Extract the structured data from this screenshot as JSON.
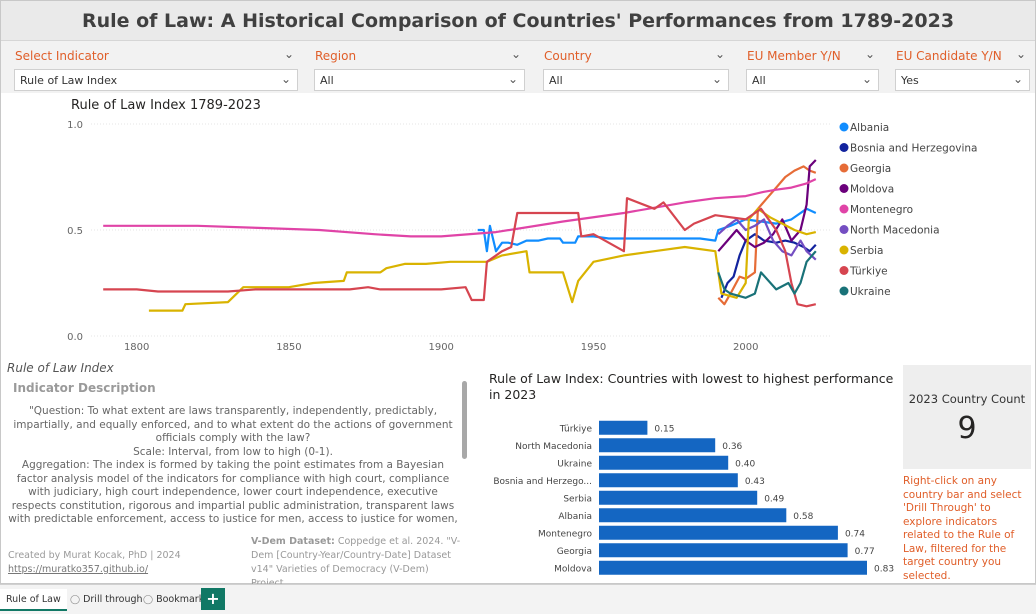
{
  "title": "Rule of Law: A Historical Comparison of Countries' Performances from 1789-2023",
  "filters": [
    {
      "label": "Select Indicator",
      "value": "Rule of Law Index"
    },
    {
      "label": "Region",
      "value": "All"
    },
    {
      "label": "Country",
      "value": "All"
    },
    {
      "label": "EU Member Y/N",
      "value": "All"
    },
    {
      "label": "EU Candidate Y/N",
      "value": "Yes"
    }
  ],
  "icons": {
    "chevron": "chevron-down-icon"
  },
  "indicator": {
    "heading": "Rule of Law Index",
    "subheading": "Indicator Description",
    "description": "\"Question: To what extent are laws transparently, independently, predictably, impartially, and equally enforced, and to what extent do the actions of government officials comply with the law?\nScale: Interval, from low to high (0-1).\nAggregation: The index is formed by taking the point estimates from a Bayesian factor analysis model of the indicators for compliance with high court, compliance with judiciary, high court independence, lower court independence, executive respects constitution, rigorous and impartial public administration, transparent laws with predictable enforcement, access to justice for men, access to justice for women, judicial accountability, judicial"
  },
  "credit": {
    "author": "Created by Murat Kocak, PhD | 2024",
    "link": "https://muratko357.github.io/"
  },
  "dataset": {
    "bold": "V-Dem Dataset:",
    "text": " Coppedge et al. 2024. \"V-Dem [Country-Year/Country-Date] Dataset v14\" Varieties of Democracy (V-Dem) Project."
  },
  "count_card": {
    "label": "2023 Country Count",
    "value": "9"
  },
  "hint": "Right-click on any country bar and select 'Drill Through' to explore indicators related to the Rule of Law, filtered for the target country you selected.",
  "tabs": [
    {
      "label": "Rule of Law",
      "icon": ""
    },
    {
      "label": "Drill through",
      "icon": "drill-icon"
    },
    {
      "label": "Bookmark",
      "icon": "bookmark-icon"
    }
  ],
  "add_tab": "+",
  "colors": {
    "Albania": "#118DFF",
    "Bosnia and Herzegovina": "#12239E",
    "Georgia": "#E66C37",
    "Moldova": "#6B007B",
    "Montenegro": "#E044A7",
    "North Macedonia": "#744EC2",
    "Serbia": "#D9B300",
    "Türkiye": "#D64550",
    "Ukraine": "#197278",
    "bar": "#1466C2",
    "accent": "#E05E29",
    "tab_accent": "#117865"
  },
  "chart_data": [
    {
      "type": "line",
      "title": "Rule of Law Index 1789-2023",
      "xlabel": "",
      "ylabel": "",
      "xlim": [
        1785,
        2028
      ],
      "ylim": [
        0,
        1
      ],
      "xticks": [
        1800,
        1850,
        1900,
        1950,
        2000
      ],
      "yticks": [
        0.0,
        0.5,
        1.0
      ],
      "ytick_labels": [
        "0.0",
        "0.5",
        "1.0"
      ],
      "legend": [
        "Albania",
        "Bosnia and Herzegovina",
        "Georgia",
        "Moldova",
        "Montenegro",
        "North Macedonia",
        "Serbia",
        "Türkiye",
        "Ukraine"
      ],
      "series": [
        {
          "name": "Albania",
          "points": [
            [
              1912,
              0.5
            ],
            [
              1914,
              0.5
            ],
            [
              1915,
              0.4
            ],
            [
              1916,
              0.52
            ],
            [
              1918,
              0.4
            ],
            [
              1920,
              0.44
            ],
            [
              1922,
              0.44
            ],
            [
              1925,
              0.43
            ],
            [
              1928,
              0.45
            ],
            [
              1932,
              0.45
            ],
            [
              1935,
              0.46
            ],
            [
              1939,
              0.46
            ],
            [
              1940,
              0.44
            ],
            [
              1944,
              0.44
            ],
            [
              1945,
              0.47
            ],
            [
              1950,
              0.47
            ],
            [
              1955,
              0.46
            ],
            [
              1960,
              0.46
            ],
            [
              1970,
              0.46
            ],
            [
              1980,
              0.46
            ],
            [
              1985,
              0.46
            ],
            [
              1990,
              0.45
            ],
            [
              1991,
              0.5
            ],
            [
              1995,
              0.52
            ],
            [
              2000,
              0.55
            ],
            [
              2005,
              0.54
            ],
            [
              2010,
              0.53
            ],
            [
              2015,
              0.55
            ],
            [
              2020,
              0.6
            ],
            [
              2023,
              0.58
            ]
          ]
        },
        {
          "name": "Bosnia and Herzegovina",
          "points": [
            [
              1992,
              0.18
            ],
            [
              1994,
              0.25
            ],
            [
              1996,
              0.28
            ],
            [
              1998,
              0.38
            ],
            [
              2000,
              0.45
            ],
            [
              2003,
              0.48
            ],
            [
              2006,
              0.45
            ],
            [
              2010,
              0.44
            ],
            [
              2013,
              0.45
            ],
            [
              2016,
              0.44
            ],
            [
              2019,
              0.42
            ],
            [
              2021,
              0.4
            ],
            [
              2023,
              0.43
            ]
          ]
        },
        {
          "name": "Georgia",
          "points": [
            [
              1991,
              0.18
            ],
            [
              1993,
              0.15
            ],
            [
              1995,
              0.2
            ],
            [
              1998,
              0.28
            ],
            [
              2000,
              0.27
            ],
            [
              2003,
              0.3
            ],
            [
              2004,
              0.6
            ],
            [
              2007,
              0.65
            ],
            [
              2010,
              0.7
            ],
            [
              2013,
              0.75
            ],
            [
              2016,
              0.78
            ],
            [
              2019,
              0.8
            ],
            [
              2021,
              0.78
            ],
            [
              2023,
              0.77
            ]
          ]
        },
        {
          "name": "Moldova",
          "points": [
            [
              1991,
              0.4
            ],
            [
              1994,
              0.45
            ],
            [
              1997,
              0.5
            ],
            [
              2000,
              0.45
            ],
            [
              2003,
              0.42
            ],
            [
              2006,
              0.44
            ],
            [
              2009,
              0.48
            ],
            [
              2012,
              0.55
            ],
            [
              2015,
              0.45
            ],
            [
              2018,
              0.5
            ],
            [
              2020,
              0.62
            ],
            [
              2021,
              0.8
            ],
            [
              2023,
              0.83
            ]
          ]
        },
        {
          "name": "Montenegro",
          "points": [
            [
              1789,
              0.52
            ],
            [
              1800,
              0.52
            ],
            [
              1820,
              0.52
            ],
            [
              1840,
              0.51
            ],
            [
              1860,
              0.5
            ],
            [
              1878,
              0.48
            ],
            [
              1890,
              0.47
            ],
            [
              1900,
              0.47
            ],
            [
              1918,
              0.49
            ],
            [
              1940,
              0.54
            ],
            [
              1960,
              0.58
            ],
            [
              1980,
              0.63
            ],
            [
              1990,
              0.65
            ],
            [
              2000,
              0.66
            ],
            [
              2006,
              0.68
            ],
            [
              2010,
              0.69
            ],
            [
              2015,
              0.7
            ],
            [
              2020,
              0.72
            ],
            [
              2023,
              0.74
            ]
          ]
        },
        {
          "name": "North Macedonia",
          "points": [
            [
              1991,
              0.48
            ],
            [
              1994,
              0.52
            ],
            [
              1997,
              0.55
            ],
            [
              2000,
              0.5
            ],
            [
              2003,
              0.52
            ],
            [
              2006,
              0.55
            ],
            [
              2009,
              0.45
            ],
            [
              2012,
              0.4
            ],
            [
              2015,
              0.38
            ],
            [
              2018,
              0.45
            ],
            [
              2020,
              0.4
            ],
            [
              2023,
              0.36
            ]
          ]
        },
        {
          "name": "Serbia",
          "points": [
            [
              1804,
              0.12
            ],
            [
              1815,
              0.12
            ],
            [
              1816,
              0.15
            ],
            [
              1830,
              0.16
            ],
            [
              1835,
              0.23
            ],
            [
              1850,
              0.23
            ],
            [
              1858,
              0.25
            ],
            [
              1868,
              0.26
            ],
            [
              1869,
              0.3
            ],
            [
              1880,
              0.3
            ],
            [
              1882,
              0.32
            ],
            [
              1888,
              0.34
            ],
            [
              1895,
              0.34
            ],
            [
              1903,
              0.35
            ],
            [
              1915,
              0.35
            ],
            [
              1920,
              0.38
            ],
            [
              1928,
              0.4
            ],
            [
              1929,
              0.3
            ],
            [
              1935,
              0.3
            ],
            [
              1940,
              0.3
            ],
            [
              1943,
              0.16
            ],
            [
              1945,
              0.26
            ],
            [
              1950,
              0.35
            ],
            [
              1960,
              0.38
            ],
            [
              1970,
              0.4
            ],
            [
              1980,
              0.42
            ],
            [
              1990,
              0.4
            ],
            [
              1992,
              0.2
            ],
            [
              1997,
              0.18
            ],
            [
              2000,
              0.25
            ],
            [
              2001,
              0.55
            ],
            [
              2004,
              0.6
            ],
            [
              2008,
              0.56
            ],
            [
              2012,
              0.53
            ],
            [
              2016,
              0.5
            ],
            [
              2020,
              0.48
            ],
            [
              2023,
              0.49
            ]
          ]
        },
        {
          "name": "Türkiye",
          "points": [
            [
              1789,
              0.22
            ],
            [
              1800,
              0.22
            ],
            [
              1807,
              0.21
            ],
            [
              1830,
              0.21
            ],
            [
              1839,
              0.22
            ],
            [
              1850,
              0.22
            ],
            [
              1870,
              0.22
            ],
            [
              1876,
              0.23
            ],
            [
              1880,
              0.22
            ],
            [
              1900,
              0.22
            ],
            [
              1908,
              0.23
            ],
            [
              1910,
              0.17
            ],
            [
              1914,
              0.17
            ],
            [
              1915,
              0.35
            ],
            [
              1920,
              0.4
            ],
            [
              1923,
              0.42
            ],
            [
              1925,
              0.58
            ],
            [
              1930,
              0.58
            ],
            [
              1945,
              0.58
            ],
            [
              1946,
              0.47
            ],
            [
              1950,
              0.48
            ],
            [
              1960,
              0.4
            ],
            [
              1961,
              0.65
            ],
            [
              1970,
              0.6
            ],
            [
              1973,
              0.63
            ],
            [
              1980,
              0.5
            ],
            [
              1983,
              0.53
            ],
            [
              1990,
              0.57
            ],
            [
              2000,
              0.55
            ],
            [
              2005,
              0.6
            ],
            [
              2010,
              0.5
            ],
            [
              2013,
              0.4
            ],
            [
              2015,
              0.25
            ],
            [
              2017,
              0.15
            ],
            [
              2020,
              0.14
            ],
            [
              2023,
              0.15
            ]
          ]
        },
        {
          "name": "Ukraine",
          "points": [
            [
              1991,
              0.3
            ],
            [
              1993,
              0.22
            ],
            [
              1995,
              0.2
            ],
            [
              2000,
              0.18
            ],
            [
              2003,
              0.2
            ],
            [
              2005,
              0.3
            ],
            [
              2010,
              0.22
            ],
            [
              2014,
              0.25
            ],
            [
              2016,
              0.2
            ],
            [
              2018,
              0.25
            ],
            [
              2020,
              0.35
            ],
            [
              2023,
              0.4
            ]
          ]
        }
      ]
    },
    {
      "type": "bar",
      "orientation": "horizontal",
      "title": "Rule of Law Index: Countries with lowest to highest performance in 2023",
      "categories": [
        "Türkiye",
        "North Macedonia",
        "Ukraine",
        "Bosnia and Herzego...",
        "Serbia",
        "Albania",
        "Montenegro",
        "Georgia",
        "Moldova"
      ],
      "values": [
        0.15,
        0.36,
        0.4,
        0.43,
        0.49,
        0.58,
        0.74,
        0.77,
        0.83
      ],
      "value_labels": [
        "0.15",
        "0.36",
        "0.40",
        "0.43",
        "0.49",
        "0.58",
        "0.74",
        "0.77",
        "0.83"
      ],
      "xlim": [
        0,
        0.83
      ]
    }
  ]
}
